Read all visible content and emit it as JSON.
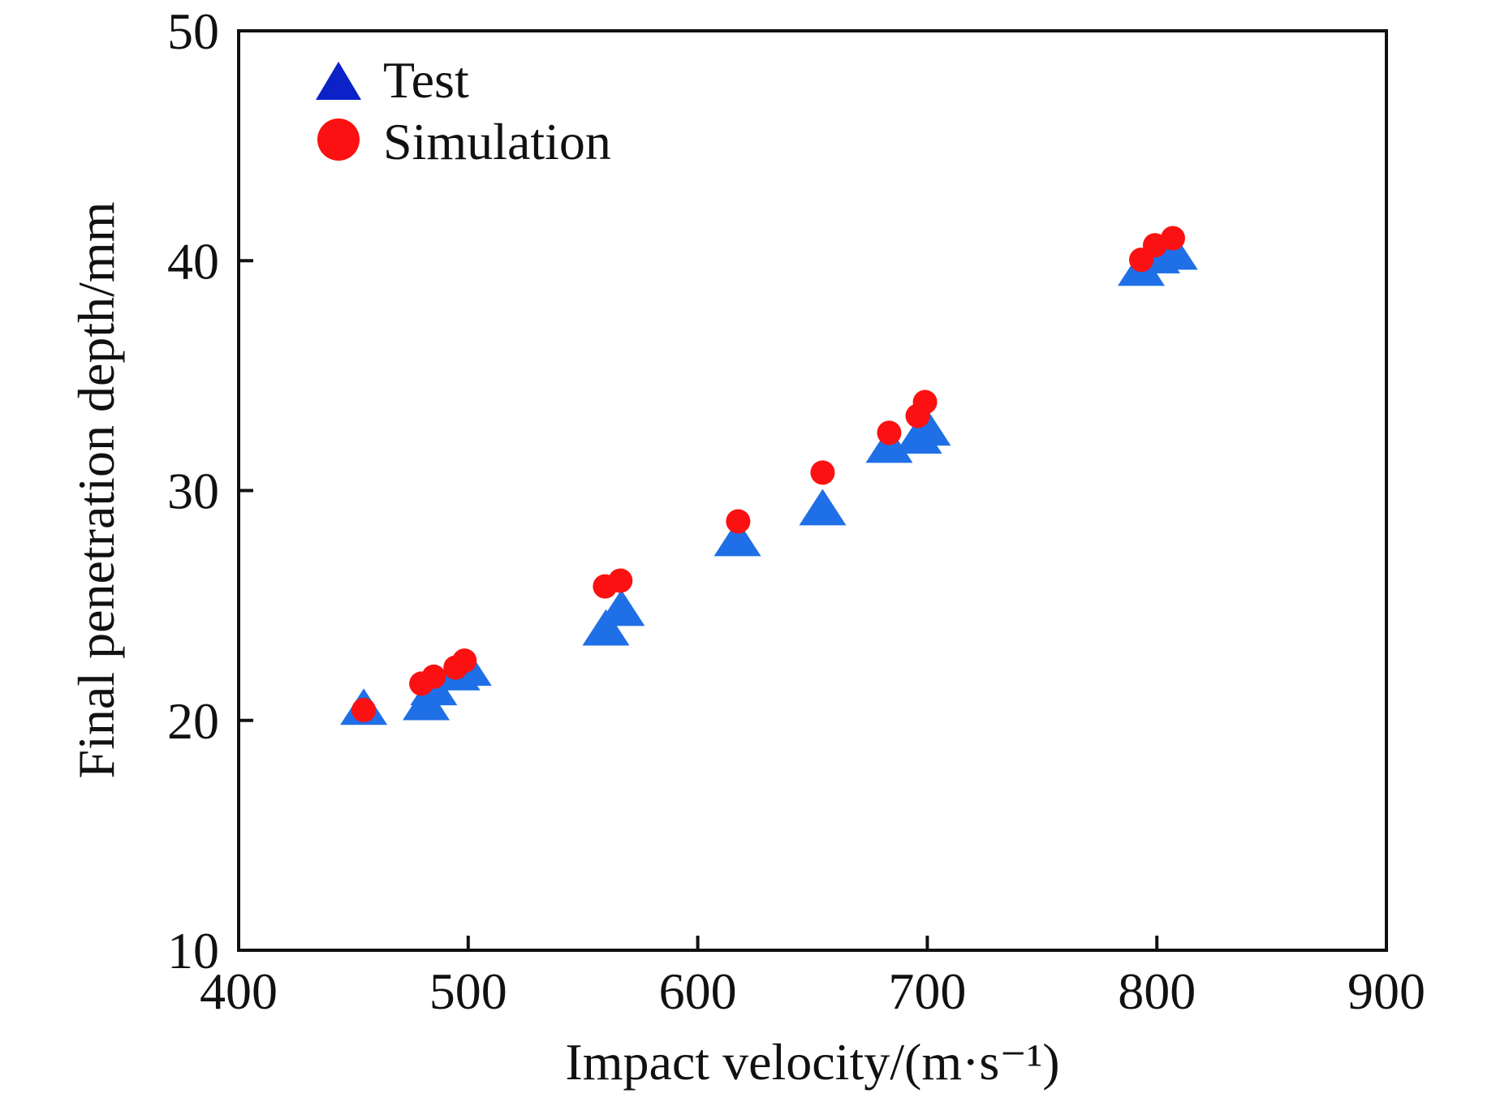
{
  "chart_data": {
    "type": "scatter",
    "title": "",
    "xlabel": "Impact velocity/(m·s⁻¹)",
    "ylabel": "Final penetration depth/mm",
    "xlim": [
      400,
      900
    ],
    "ylim": [
      10,
      50
    ],
    "xticks": [
      400,
      500,
      600,
      700,
      800,
      900
    ],
    "yticks": [
      10,
      20,
      30,
      40,
      50
    ],
    "xtick_labels": [
      "400",
      "500",
      "600",
      "700",
      "800",
      "900"
    ],
    "ytick_labels": [
      "10",
      "20",
      "30",
      "40",
      "50"
    ],
    "grid": false,
    "legend_position": "top-left",
    "series": [
      {
        "name": "Test",
        "marker": "triangle",
        "color": "#1f6fe6",
        "legend_color": "#0a22c8",
        "points": [
          [
            454.5,
            20.4
          ],
          [
            481.7,
            20.6
          ],
          [
            485.0,
            21.25
          ],
          [
            495.0,
            21.9
          ],
          [
            500.0,
            22.1
          ],
          [
            560.0,
            23.85
          ],
          [
            566.7,
            24.7
          ],
          [
            617.3,
            27.74
          ],
          [
            654.4,
            29.08
          ],
          [
            683.4,
            31.8
          ],
          [
            696.2,
            32.2
          ],
          [
            700.0,
            32.55
          ],
          [
            793.2,
            39.5
          ],
          [
            799.9,
            40.04
          ],
          [
            807.6,
            40.2
          ]
        ]
      },
      {
        "name": "Simulation",
        "marker": "circle",
        "color": "#fb1111",
        "legend_color": "#fb1111",
        "points": [
          [
            454.5,
            20.45
          ],
          [
            479.6,
            21.6
          ],
          [
            485.0,
            21.9
          ],
          [
            494.5,
            22.3
          ],
          [
            498.4,
            22.6
          ],
          [
            559.6,
            25.83
          ],
          [
            566.3,
            26.08
          ],
          [
            617.6,
            28.66
          ],
          [
            654.4,
            30.78
          ],
          [
            683.4,
            32.51
          ],
          [
            695.8,
            33.25
          ],
          [
            699.0,
            33.85
          ],
          [
            793.2,
            40.04
          ],
          [
            799.2,
            40.67
          ],
          [
            807.0,
            40.98
          ]
        ]
      }
    ]
  }
}
